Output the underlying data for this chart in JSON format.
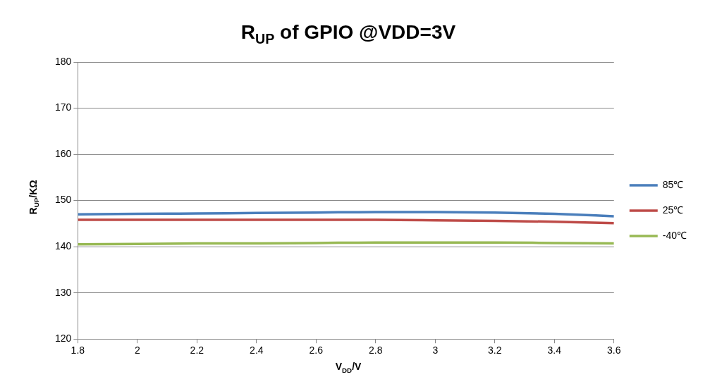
{
  "chart_data": {
    "type": "line",
    "title": "R$_{UP}$ of GPIO @VDD=3V",
    "xlabel": "V$_{DD}$/V",
    "ylabel": "R$_{UP}$/KΩ",
    "x": [
      1.8,
      2.0,
      2.2,
      2.4,
      2.6,
      2.8,
      3.0,
      3.2,
      3.4,
      3.6
    ],
    "series": [
      {
        "name": "85℃",
        "color": "#4a7ebb",
        "values": [
          147.0,
          147.1,
          147.2,
          147.3,
          147.4,
          147.5,
          147.5,
          147.4,
          147.1,
          146.6
        ]
      },
      {
        "name": "25℃",
        "color": "#be4b48",
        "values": [
          145.8,
          145.8,
          145.8,
          145.8,
          145.8,
          145.8,
          145.7,
          145.6,
          145.4,
          145.1
        ]
      },
      {
        "name": "-40℃",
        "color": "#98b954",
        "values": [
          140.5,
          140.6,
          140.7,
          140.7,
          140.8,
          140.9,
          140.9,
          140.9,
          140.8,
          140.7
        ]
      }
    ],
    "xlim": [
      1.8,
      3.6
    ],
    "xticks": [
      1.8,
      2,
      2.2,
      2.4,
      2.6,
      2.8,
      3,
      3.2,
      3.4,
      3.6
    ],
    "ylim": [
      120,
      180
    ],
    "yticks": [
      120,
      130,
      140,
      150,
      160,
      170,
      180
    ],
    "grid": "y",
    "legend": "right",
    "marker": "none",
    "line_style": "solid"
  }
}
